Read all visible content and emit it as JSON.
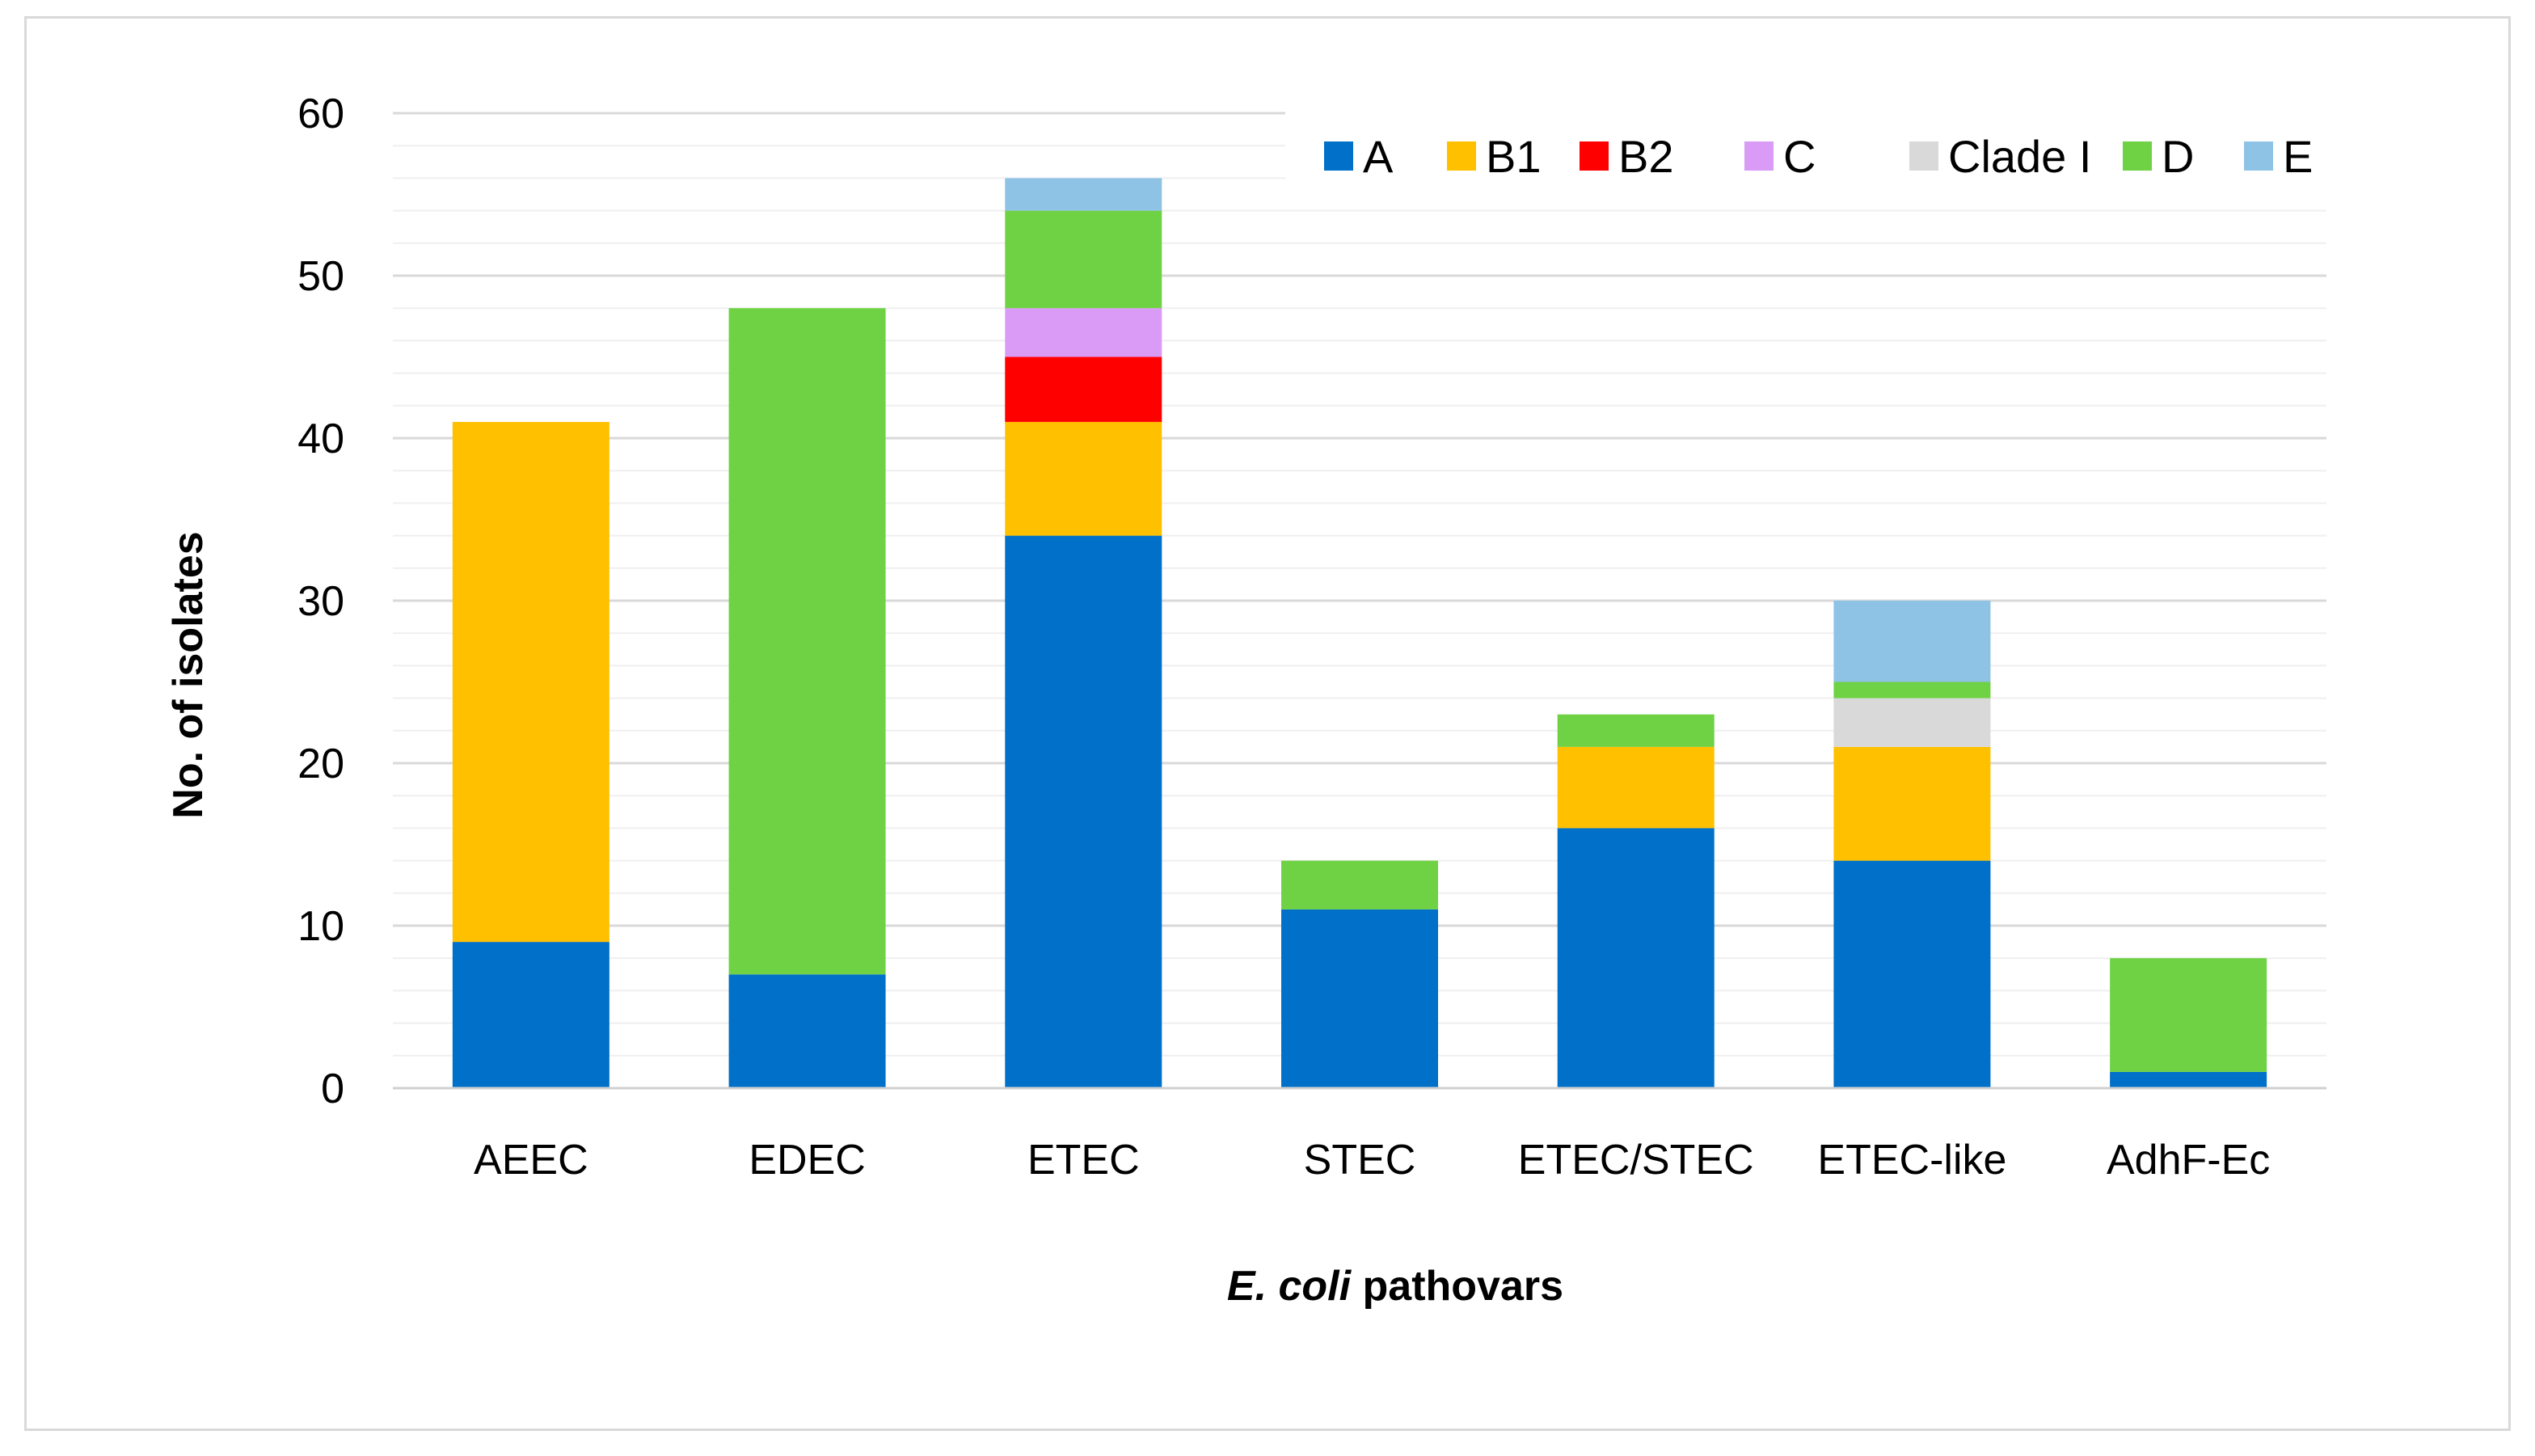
{
  "chart_data": {
    "type": "bar",
    "stacked": true,
    "title": "",
    "xlabel_italic": "E. coli",
    "xlabel_rest": " pathovars",
    "ylabel": "No. of isolates",
    "ylim": [
      0,
      60
    ],
    "yticks": [
      0,
      10,
      20,
      30,
      40,
      50,
      60
    ],
    "minor_grid_step": 2,
    "legend_position": "top-right",
    "categories": [
      "AEEC",
      "EDEC",
      "ETEC",
      "STEC",
      "ETEC/STEC",
      "ETEC-like",
      "AdhF-Ec"
    ],
    "series": [
      {
        "name": "A",
        "color": "#0070C8",
        "values": [
          9,
          7,
          34,
          11,
          16,
          14,
          1
        ]
      },
      {
        "name": "B1",
        "color": "#FFC000",
        "values": [
          32,
          0,
          7,
          0,
          5,
          7,
          0
        ]
      },
      {
        "name": "B2",
        "color": "#FF0000",
        "values": [
          0,
          0,
          4,
          0,
          0,
          0,
          0
        ]
      },
      {
        "name": "C",
        "color": "#D99BF5",
        "values": [
          0,
          0,
          3,
          0,
          0,
          0,
          0
        ]
      },
      {
        "name": "Clade I",
        "color": "#D9D9D9",
        "values": [
          0,
          0,
          0,
          0,
          0,
          3,
          0
        ]
      },
      {
        "name": "D",
        "color": "#6FD244",
        "values": [
          0,
          41,
          6,
          3,
          2,
          1,
          7
        ]
      },
      {
        "name": "E",
        "color": "#8EC3E6",
        "values": [
          0,
          0,
          2,
          0,
          0,
          5,
          0
        ]
      }
    ]
  }
}
